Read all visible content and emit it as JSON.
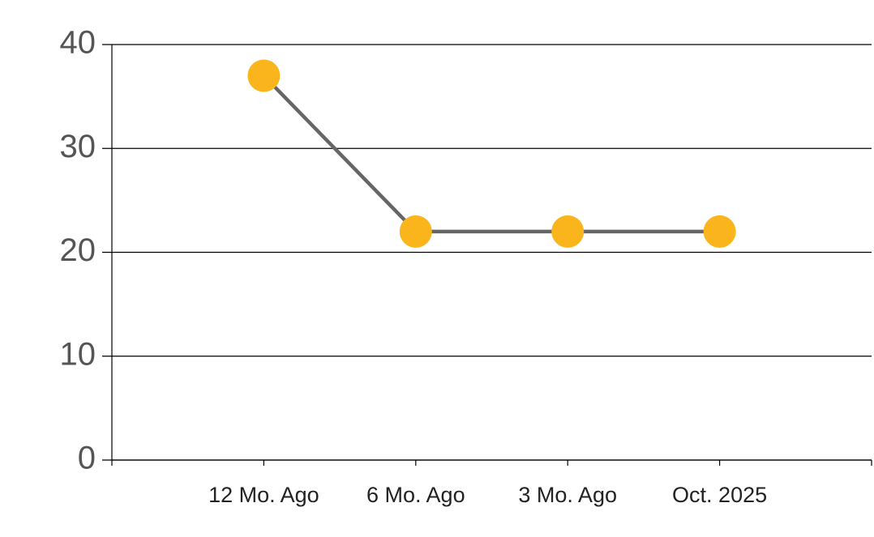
{
  "chart_data": {
    "type": "line",
    "categories": [
      "12 Mo. Ago",
      "6 Mo. Ago",
      "3 Mo. Ago",
      "Oct. 2025"
    ],
    "values": [
      37,
      22,
      22,
      22
    ],
    "color": "#666666",
    "marker_color": "#f9b51b",
    "ylim": [
      0,
      40
    ],
    "yticks": [
      0,
      10,
      20,
      30,
      40
    ],
    "grid": true
  }
}
